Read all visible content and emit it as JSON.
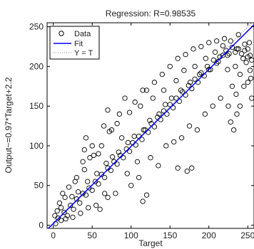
{
  "chart_data": {
    "type": "scatter",
    "title": "Regression: R=0.98535",
    "xlabel": "Target",
    "ylabel": "Output~=0.97*Target+2.2",
    "xlim": [
      -8,
      258
    ],
    "ylim": [
      -4,
      255
    ],
    "xticks": [
      0,
      50,
      100,
      150,
      200,
      250
    ],
    "yticks": [
      0,
      50,
      100,
      150,
      200,
      250
    ],
    "grid": false,
    "legend_position": "top-left",
    "fit": {
      "slope": 0.97,
      "intercept": 2.2
    },
    "series": [
      {
        "name": "Data",
        "marker": "open-circle",
        "color": "#000000",
        "points": [
          [
            3,
            2
          ],
          [
            6,
            9
          ],
          [
            10,
            6
          ],
          [
            14,
            16
          ],
          [
            18,
            12
          ],
          [
            22,
            25
          ],
          [
            26,
            20
          ],
          [
            30,
            33
          ],
          [
            34,
            28
          ],
          [
            38,
            40
          ],
          [
            42,
            38
          ],
          [
            46,
            47
          ],
          [
            50,
            44
          ],
          [
            54,
            55
          ],
          [
            58,
            52
          ],
          [
            62,
            64
          ],
          [
            66,
            60
          ],
          [
            70,
            72
          ],
          [
            74,
            69
          ],
          [
            78,
            80
          ],
          [
            82,
            77
          ],
          [
            86,
            88
          ],
          [
            90,
            85
          ],
          [
            94,
            96
          ],
          [
            98,
            93
          ],
          [
            102,
            104
          ],
          [
            106,
            101
          ],
          [
            110,
            112
          ],
          [
            114,
            108
          ],
          [
            118,
            120
          ],
          [
            122,
            117
          ],
          [
            126,
            128
          ],
          [
            130,
            124
          ],
          [
            134,
            136
          ],
          [
            138,
            133
          ],
          [
            142,
            144
          ],
          [
            146,
            140
          ],
          [
            150,
            152
          ],
          [
            154,
            148
          ],
          [
            158,
            160
          ],
          [
            162,
            156
          ],
          [
            166,
            168
          ],
          [
            170,
            164
          ],
          [
            174,
            176
          ],
          [
            178,
            172
          ],
          [
            182,
            184
          ],
          [
            186,
            180
          ],
          [
            190,
            192
          ],
          [
            194,
            188
          ],
          [
            198,
            200
          ],
          [
            202,
            196
          ],
          [
            206,
            208
          ],
          [
            210,
            204
          ],
          [
            214,
            212
          ],
          [
            218,
            214
          ],
          [
            222,
            220
          ],
          [
            226,
            216
          ],
          [
            230,
            224
          ],
          [
            234,
            218
          ],
          [
            238,
            222
          ],
          [
            242,
            216
          ],
          [
            246,
            220
          ],
          [
            250,
            212
          ],
          [
            253,
            214
          ],
          [
            255,
            208
          ],
          [
            15,
            35
          ],
          [
            20,
            48
          ],
          [
            25,
            10
          ],
          [
            30,
            60
          ],
          [
            35,
            15
          ],
          [
            40,
            70
          ],
          [
            45,
            22
          ],
          [
            12,
            40
          ],
          [
            8,
            28
          ],
          [
            28,
            55
          ],
          [
            40,
            95
          ],
          [
            47,
            85
          ],
          [
            55,
            25
          ],
          [
            60,
            20
          ],
          [
            62,
            100
          ],
          [
            70,
            35
          ],
          [
            75,
            120
          ],
          [
            80,
            40
          ],
          [
            85,
            140
          ],
          [
            92,
            160
          ],
          [
            100,
            50
          ],
          [
            105,
            155
          ],
          [
            110,
            60
          ],
          [
            115,
            170
          ],
          [
            120,
            170
          ],
          [
            125,
            85
          ],
          [
            130,
            180
          ],
          [
            135,
            75
          ],
          [
            140,
            190
          ],
          [
            145,
            100
          ],
          [
            150,
            200
          ],
          [
            155,
            105
          ],
          [
            160,
            210
          ],
          [
            165,
            110
          ],
          [
            170,
            215
          ],
          [
            175,
            125
          ],
          [
            180,
            222
          ],
          [
            185,
            120
          ],
          [
            190,
            225
          ],
          [
            195,
            140
          ],
          [
            200,
            230
          ],
          [
            205,
            150
          ],
          [
            210,
            232
          ],
          [
            215,
            160
          ],
          [
            220,
            235
          ],
          [
            225,
            150
          ],
          [
            230,
            175
          ],
          [
            235,
            165
          ],
          [
            240,
            190
          ],
          [
            245,
            175
          ],
          [
            250,
            180
          ],
          [
            253,
            195
          ],
          [
            255,
            160
          ],
          [
            248,
            205
          ],
          [
            252,
            230
          ],
          [
            254,
            185
          ],
          [
            240,
            150
          ],
          [
            236,
            140
          ],
          [
            232,
            120
          ],
          [
            228,
            130
          ],
          [
            178,
            72
          ],
          [
            172,
            68
          ],
          [
            160,
            72
          ],
          [
            120,
            38
          ],
          [
            115,
            30
          ],
          [
            108,
            80
          ],
          [
            95,
            65
          ],
          [
            88,
            110
          ],
          [
            70,
            145
          ],
          [
            65,
            125
          ],
          [
            50,
            100
          ],
          [
            42,
            110
          ],
          [
            38,
            80
          ],
          [
            52,
            88
          ],
          [
            58,
            90
          ],
          [
            66,
            40
          ],
          [
            72,
            118
          ],
          [
            82,
            128
          ],
          [
            98,
            142
          ],
          [
            112,
            150
          ],
          [
            128,
            160
          ],
          [
            142,
            170
          ],
          [
            158,
            182
          ],
          [
            168,
            195
          ],
          [
            182,
            200
          ],
          [
            196,
            210
          ],
          [
            208,
            218
          ],
          [
            218,
            226
          ],
          [
            228,
            232
          ],
          [
            238,
            240
          ],
          [
            10,
            22
          ],
          [
            5,
            18
          ],
          [
            2,
            12
          ],
          [
            16,
            8
          ],
          [
            24,
            36
          ],
          [
            32,
            42
          ],
          [
            44,
            55
          ],
          [
            56,
            65
          ],
          [
            68,
            78
          ],
          [
            76,
            86
          ],
          [
            84,
            92
          ],
          [
            96,
            104
          ],
          [
            104,
            112
          ],
          [
            116,
            120
          ],
          [
            124,
            132
          ],
          [
            136,
            140
          ],
          [
            144,
            152
          ],
          [
            152,
            160
          ],
          [
            164,
            170
          ],
          [
            176,
            180
          ],
          [
            188,
            190
          ],
          [
            200,
            196
          ],
          [
            212,
            206
          ],
          [
            224,
            214
          ],
          [
            236,
            222
          ],
          [
            246,
            228
          ],
          [
            250,
            222
          ],
          [
            244,
            210
          ],
          [
            234,
            200
          ],
          [
            224,
            196
          ]
        ]
      },
      {
        "name": "Fit",
        "kind": "line",
        "color": "#0000ff"
      },
      {
        "name": "Y = T",
        "kind": "dotted-line",
        "color": "#888888"
      }
    ]
  }
}
